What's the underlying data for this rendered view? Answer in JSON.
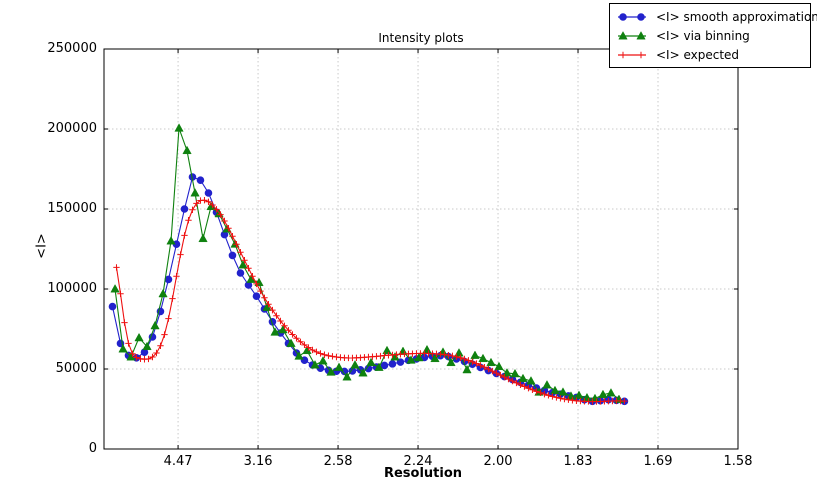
{
  "chart_data": {
    "type": "line",
    "title": "Intensity plots",
    "xlabel": "Resolution",
    "ylabel": "<I>",
    "grid": true,
    "legend_position": "top-right-outside",
    "x_axis": {
      "unit": "1/d^2 (resolution in Angstrom shown on tick labels)",
      "min": 0.0037,
      "max": 0.4,
      "ticks": [
        0.05,
        0.1,
        0.15,
        0.2,
        0.25,
        0.3,
        0.35,
        0.4
      ],
      "tick_labels": [
        "4.47",
        "3.16",
        "2.58",
        "2.24",
        "2.00",
        "1.83",
        "1.69",
        "1.58"
      ]
    },
    "y_axis": {
      "min": 0,
      "max": 250000,
      "ticks": [
        0,
        50000,
        100000,
        150000,
        200000,
        250000
      ],
      "tick_labels": [
        "0",
        "50000",
        "100000",
        "150000",
        "200000",
        "250000"
      ]
    },
    "colors": {
      "smooth": "#2222cc",
      "binning": "#0f810f",
      "expected": "#ee1111",
      "gridline": "#c9c9c9",
      "axis": "#000000"
    },
    "series": [
      {
        "name": "<I> smooth approximation",
        "marker": "circle",
        "color": "#2222cc",
        "x_start": 0.009,
        "x_step": 0.005,
        "values": [
          89000,
          66000,
          58500,
          57000,
          60500,
          70000,
          86000,
          106000,
          128000,
          150000,
          170000,
          168000,
          160000,
          148000,
          134000,
          121000,
          110000,
          102500,
          95500,
          87500,
          79500,
          72500,
          66000,
          60000,
          55500,
          52500,
          50500,
          49200,
          48600,
          48500,
          48800,
          49500,
          50300,
          51200,
          52200,
          53200,
          54300,
          55400,
          56300,
          57200,
          57900,
          58300,
          57800,
          56300,
          54700,
          53000,
          51000,
          49000,
          47200,
          45300,
          43500,
          41700,
          39900,
          38100,
          36600,
          35200,
          34300,
          33200,
          32200,
          30800,
          29800,
          30200,
          30800,
          30400,
          29800
        ]
      },
      {
        "name": "<I> via binning",
        "marker": "triangle",
        "color": "#0f810f",
        "x_start": 0.0106,
        "x_step": 0.005,
        "values": [
          100000,
          62500,
          57500,
          69500,
          64000,
          77000,
          97000,
          130000,
          200500,
          186500,
          160000,
          131500,
          151500,
          147000,
          137500,
          128000,
          115000,
          106000,
          104000,
          88500,
          73000,
          74500,
          66000,
          58000,
          61500,
          52500,
          55000,
          48000,
          51000,
          45000,
          52500,
          47500,
          54000,
          51000,
          61500,
          57500,
          61000,
          55500,
          57000,
          62000,
          56500,
          60500,
          54000,
          60000,
          49500,
          58500,
          56500,
          54000,
          51500,
          47500,
          47000,
          44000,
          42500,
          35500,
          40000,
          36500,
          35500,
          33000,
          33500,
          32000,
          31500,
          34000,
          35000,
          31000
        ]
      },
      {
        "name": "<I> expected",
        "marker": "plus",
        "color": "#ee1111",
        "x_start": 0.0115,
        "x_step": 0.0025,
        "values": [
          113500,
          97000,
          79000,
          66000,
          59500,
          57200,
          56400,
          56100,
          56300,
          57500,
          60000,
          64500,
          71500,
          81500,
          94000,
          108000,
          121500,
          133500,
          143000,
          149500,
          153500,
          155300,
          155500,
          154500,
          152500,
          149800,
          146500,
          142500,
          138000,
          133000,
          128000,
          123000,
          118000,
          113000,
          108000,
          103200,
          98700,
          94500,
          90500,
          86800,
          83300,
          80000,
          77000,
          74200,
          71600,
          69200,
          67000,
          65100,
          63400,
          61900,
          60700,
          59700,
          58900,
          58300,
          57900,
          57500,
          57200,
          57000,
          56900,
          56900,
          57000,
          57100,
          57300,
          57500,
          57700,
          57900,
          58100,
          58400,
          58600,
          58800,
          59000,
          59200,
          59400,
          59500,
          59600,
          59700,
          59750,
          59750,
          59700,
          59600,
          59450,
          59250,
          59000,
          58650,
          58200,
          57650,
          57000,
          56250,
          55400,
          54450,
          53400,
          52300,
          51150,
          49950,
          48700,
          47450,
          46200,
          44950,
          43700,
          42500,
          41300,
          40150,
          39050,
          38000,
          37000,
          36050,
          35150,
          34300,
          33550,
          32850,
          32250,
          31700,
          31200,
          30800,
          30450,
          30150,
          29950,
          29800,
          29700,
          29650,
          29650,
          29700,
          29800,
          29900,
          30000,
          30050,
          30000,
          29900
        ]
      }
    ]
  }
}
